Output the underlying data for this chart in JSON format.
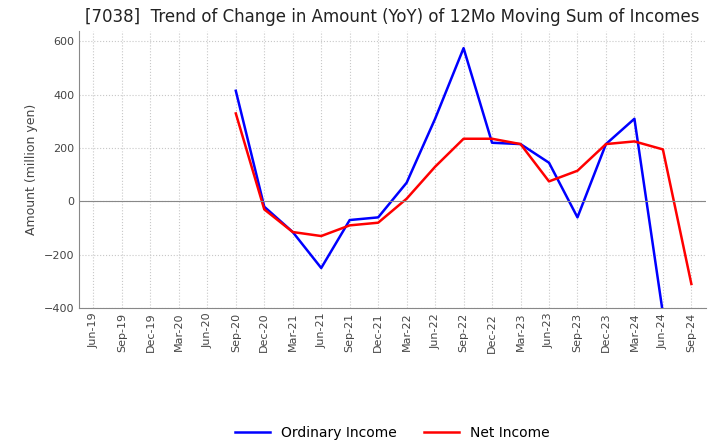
{
  "title": "[7038]  Trend of Change in Amount (YoY) of 12Mo Moving Sum of Incomes",
  "ylabel": "Amount (million yen)",
  "ylim": [
    -400,
    640
  ],
  "yticks": [
    -400,
    -200,
    0,
    200,
    400,
    600
  ],
  "x_labels": [
    "Jun-19",
    "Sep-19",
    "Dec-19",
    "Mar-20",
    "Jun-20",
    "Sep-20",
    "Dec-20",
    "Mar-21",
    "Jun-21",
    "Sep-21",
    "Dec-21",
    "Mar-22",
    "Jun-22",
    "Sep-22",
    "Dec-22",
    "Mar-23",
    "Jun-23",
    "Sep-23",
    "Dec-23",
    "Mar-24",
    "Jun-24",
    "Sep-24"
  ],
  "ordinary_income": [
    null,
    null,
    null,
    null,
    null,
    415,
    -20,
    -115,
    -250,
    -70,
    -60,
    70,
    310,
    575,
    220,
    215,
    145,
    -60,
    215,
    310,
    -420,
    null
  ],
  "net_income": [
    null,
    null,
    null,
    null,
    null,
    330,
    -30,
    -115,
    -130,
    -90,
    -80,
    10,
    130,
    235,
    235,
    215,
    75,
    115,
    215,
    225,
    195,
    -310
  ],
  "ordinary_color": "#0000ff",
  "net_color": "#ff0000",
  "background_color": "#ffffff",
  "grid_color": "#c8c8c8",
  "title_fontsize": 12,
  "axis_fontsize": 9,
  "tick_fontsize": 8,
  "legend_fontsize": 10
}
